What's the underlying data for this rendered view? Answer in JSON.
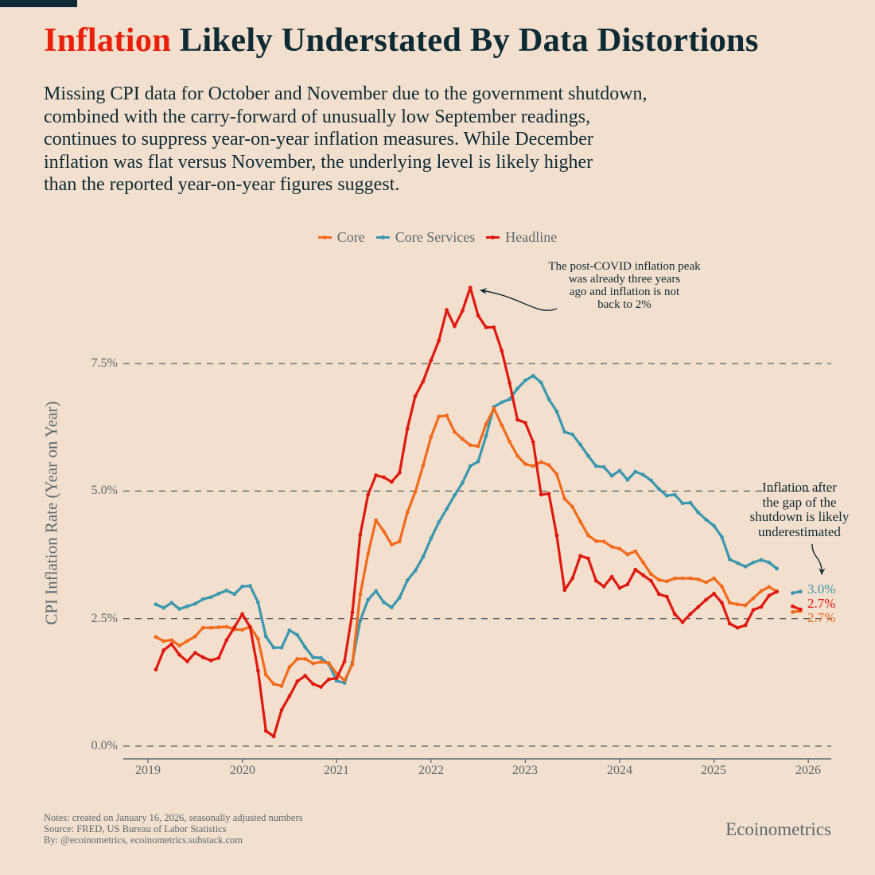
{
  "header": {
    "title_highlight": "Inflation",
    "title_rest": "Likely Understated By Data Distortions",
    "subtitle_lines": [
      "Missing CPI data for October and November due to the government shutdown,",
      "combined with the carry-forward of unusually low September readings,",
      "continues to suppress year-on-year inflation measures. While December",
      "inflation was flat versus November, the underlying level is likely higher",
      "than the reported year-on-year figures suggest."
    ]
  },
  "colors": {
    "background": "#f2dfce",
    "title_accent": "#e8200c",
    "text": "#0d2a35",
    "core": "#f26b1d",
    "core_services": "#3b97ae",
    "headline": "#e0190f",
    "grid": "#5a5f60"
  },
  "chart_data": {
    "type": "line",
    "title": "Inflation Likely Understated By Data Distortions",
    "xlabel": "",
    "ylabel": "CPI Inflation Rate (Year on Year)",
    "ylim": [
      0,
      9.2
    ],
    "xlim": [
      "2018-12",
      "2026-04"
    ],
    "grid": "horizontal dashed",
    "legend_placement": "top-center",
    "x_start": "2019-02",
    "x_end": "2025-12",
    "frequency": "monthly",
    "x_ticks": [
      "2019",
      "2020",
      "2021",
      "2022",
      "2023",
      "2024",
      "2025",
      "2026"
    ],
    "y_ticks": [
      {
        "value": 0,
        "label": "0.0%"
      },
      {
        "value": 2.5,
        "label": "2.5%"
      },
      {
        "value": 5,
        "label": "5.0%"
      },
      {
        "value": 7.5,
        "label": "7.5%"
      }
    ],
    "series": [
      {
        "name": "Core",
        "color": "#f26b1d",
        "values": [
          2.14,
          2.06,
          2.08,
          1.97,
          2.06,
          2.15,
          2.32,
          2.32,
          2.33,
          2.34,
          2.29,
          2.28,
          2.34,
          2.1,
          1.4,
          1.22,
          1.18,
          1.55,
          1.71,
          1.71,
          1.62,
          1.65,
          1.63,
          1.42,
          1.29,
          1.6,
          2.97,
          3.77,
          4.43,
          4.21,
          3.95,
          4.01,
          4.58,
          4.98,
          5.5,
          6.06,
          6.46,
          6.48,
          6.16,
          6.02,
          5.9,
          5.88,
          6.31,
          6.62,
          6.29,
          5.97,
          5.69,
          5.53,
          5.49,
          5.57,
          5.51,
          5.33,
          4.85,
          4.69,
          4.4,
          4.13,
          4.02,
          4.01,
          3.91,
          3.87,
          3.76,
          3.82,
          3.6,
          3.37,
          3.26,
          3.23,
          3.29,
          3.29,
          3.29,
          3.27,
          3.21,
          3.29,
          3.13,
          2.81,
          2.78,
          2.76,
          2.9,
          3.04,
          3.12,
          3.03,
          null,
          2.63,
          2.65
        ],
        "end_label": "2.7%"
      },
      {
        "name": "Core Services",
        "color": "#3b97ae",
        "values": [
          2.78,
          2.71,
          2.81,
          2.69,
          2.74,
          2.79,
          2.88,
          2.92,
          2.99,
          3.05,
          2.98,
          3.13,
          3.14,
          2.82,
          2.15,
          1.93,
          1.93,
          2.27,
          2.18,
          1.94,
          1.74,
          1.73,
          1.61,
          1.28,
          1.24,
          1.64,
          2.46,
          2.87,
          3.04,
          2.82,
          2.72,
          2.91,
          3.25,
          3.44,
          3.71,
          4.07,
          4.39,
          4.65,
          4.92,
          5.16,
          5.49,
          5.58,
          6.08,
          6.65,
          6.74,
          6.8,
          7.01,
          7.17,
          7.26,
          7.13,
          6.8,
          6.56,
          6.16,
          6.11,
          5.91,
          5.69,
          5.49,
          5.47,
          5.3,
          5.4,
          5.22,
          5.38,
          5.32,
          5.21,
          5.04,
          4.91,
          4.93,
          4.76,
          4.77,
          4.58,
          4.44,
          4.32,
          4.1,
          3.66,
          3.59,
          3.52,
          3.6,
          3.65,
          3.6,
          3.48,
          null,
          3.0,
          3.03
        ],
        "end_label": "3.0%"
      },
      {
        "name": "Headline",
        "color": "#e0190f",
        "values": [
          1.5,
          1.88,
          2.0,
          1.79,
          1.66,
          1.83,
          1.74,
          1.68,
          1.73,
          2.08,
          2.33,
          2.59,
          2.33,
          1.48,
          0.3,
          0.19,
          0.71,
          0.98,
          1.27,
          1.38,
          1.22,
          1.16,
          1.31,
          1.33,
          1.66,
          2.62,
          4.14,
          4.93,
          5.31,
          5.27,
          5.18,
          5.36,
          6.22,
          6.86,
          7.15,
          7.56,
          7.95,
          8.55,
          8.23,
          8.53,
          8.99,
          8.44,
          8.21,
          8.21,
          7.75,
          7.12,
          6.4,
          6.34,
          5.96,
          4.93,
          4.95,
          4.13,
          3.06,
          3.29,
          3.73,
          3.68,
          3.24,
          3.13,
          3.32,
          3.1,
          3.17,
          3.46,
          3.35,
          3.24,
          2.98,
          2.93,
          2.59,
          2.43,
          2.59,
          2.73,
          2.87,
          2.99,
          2.81,
          2.4,
          2.32,
          2.37,
          2.67,
          2.73,
          2.95,
          3.03,
          null,
          2.74,
          2.68
        ],
        "end_label": "2.7%"
      }
    ],
    "annotations": [
      {
        "target": "Headline peak, 2022-06",
        "lines": [
          "The post-COVID inflation peak",
          "was already three years",
          "ago and inflation is not",
          "back to 2%"
        ]
      },
      {
        "target": "Post-shutdown points, 2025-11/12",
        "lines": [
          "Inflation after",
          "the gap of the",
          "shutdown is likely",
          "underestimated"
        ]
      }
    ]
  },
  "footer": {
    "notes": "Notes: created on January 16, 2026, seasonally adjusted numbers",
    "source": "Source: FRED, US Bureau of Labor Statistics",
    "by": "By: @ecoinometrics, ecoinometrics.substack.com",
    "brand": "Ecoinometrics"
  }
}
